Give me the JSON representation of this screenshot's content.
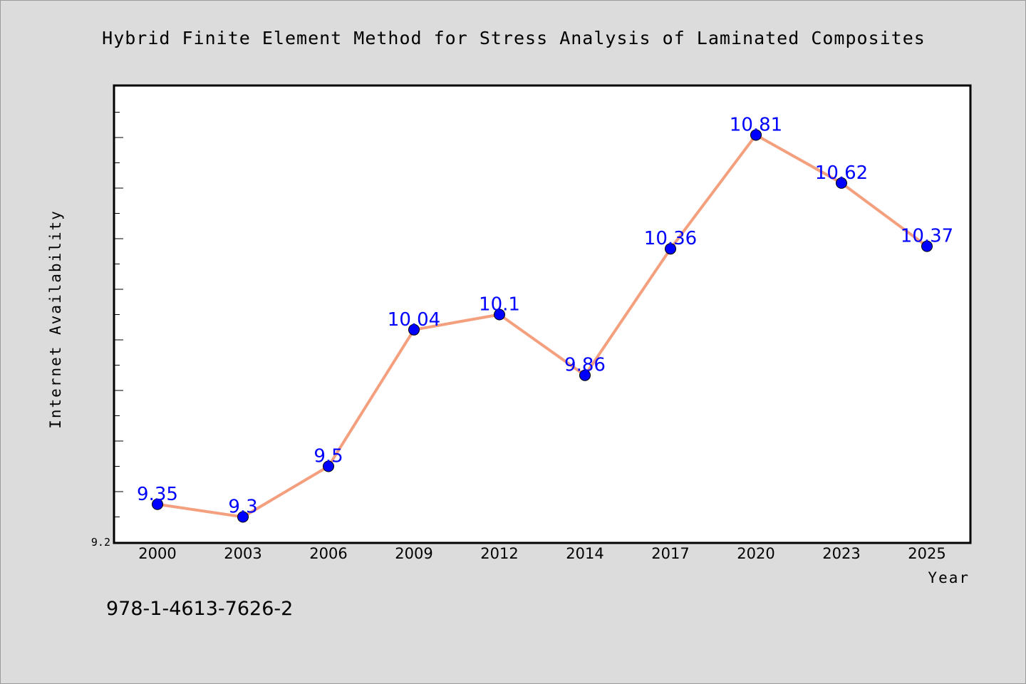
{
  "figure": {
    "background": "#dcdcdc",
    "plot_background": "#ffffff"
  },
  "isbn": "978-1-4613-7626-2",
  "chart_data": {
    "type": "line",
    "title": "Hybrid Finite Element Method for Stress Analysis of Laminated Composites",
    "xlabel": "Year",
    "ylabel": "Internet Availability",
    "categories": [
      "2000",
      "2003",
      "2006",
      "2009",
      "2012",
      "2014",
      "2017",
      "2020",
      "2023",
      "2025"
    ],
    "values": [
      9.35,
      9.3,
      9.5,
      10.04,
      10.1,
      9.86,
      10.36,
      10.81,
      10.62,
      10.37
    ],
    "data_labels": [
      "9.35",
      "9.3",
      "9.5",
      "10.04",
      "10.1",
      "9.86",
      "10.36",
      "10.81",
      "10.62",
      "10.37"
    ],
    "y_tick_labels": [
      "9.2"
    ],
    "ylim": [
      9.2,
      11.0
    ],
    "y_tick_step": 0.1,
    "y_major_every": 2,
    "grid": false,
    "line_color": "#f4a07e",
    "marker_color": "#0000ff",
    "label_color": "#0000ff"
  }
}
